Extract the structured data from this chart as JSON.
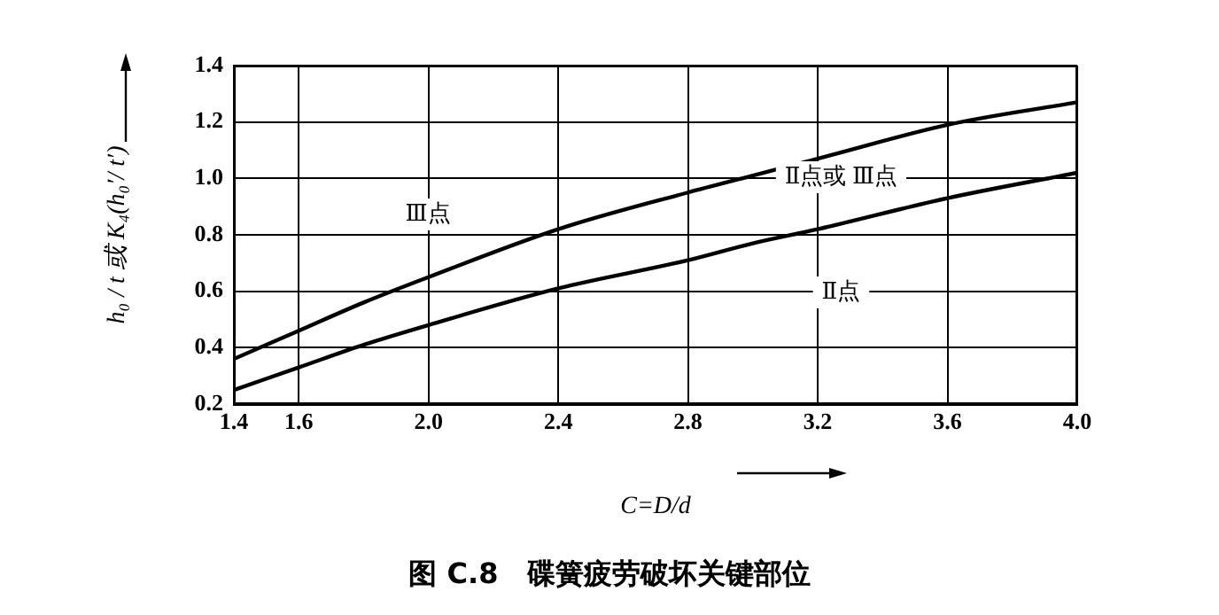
{
  "chart_data": {
    "type": "line",
    "title": "图 C.8　碟簧疲劳破坏关键部位",
    "xlabel": "C=D/d",
    "ylabel": "h₀ / t 或 K₄(h₀′/ t′)",
    "x": [
      1.4,
      1.6,
      1.8,
      2.0,
      2.4,
      2.8,
      3.0,
      3.2,
      3.6,
      4.0
    ],
    "series": [
      {
        "color": "#000000",
        "values": [
          0.36,
          0.46,
          0.56,
          0.65,
          0.82,
          0.95,
          1.01,
          1.07,
          1.19,
          1.27
        ]
      },
      {
        "color": "#000000",
        "values": [
          0.25,
          0.33,
          0.41,
          0.48,
          0.61,
          0.71,
          0.77,
          0.82,
          0.93,
          1.02
        ]
      }
    ],
    "annotations": [
      "Ⅲ点",
      "Ⅱ点或 Ⅲ点",
      "Ⅱ点"
    ],
    "xlim": [
      1.4,
      4.0
    ],
    "xticks": [
      {
        "value": 1.4,
        "label": "1.4"
      },
      {
        "value": 1.6,
        "label": "1.6"
      },
      {
        "value": 2.0,
        "label": "2.0"
      },
      2.4,
      2.8,
      3.2,
      3.6,
      {
        "value": 4.0,
        "label": "4.0"
      }
    ],
    "ylim": [
      0.2,
      1.4
    ],
    "yticks": [
      0.2,
      0.4,
      0.6,
      0.8,
      {
        "value": 1.0,
        "label": "1.0"
      },
      1.2,
      1.4
    ],
    "grid": true,
    "legend": false,
    "marker": "none",
    "line_style": "solid"
  }
}
